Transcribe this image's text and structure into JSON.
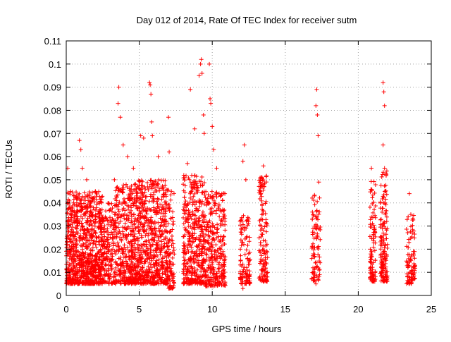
{
  "chart_data": {
    "type": "scatter",
    "title": "Day 012 of 2014, Rate Of TEC Index for receiver sutm",
    "xlabel": "GPS time / hours",
    "ylabel": "ROTI / TECUs",
    "xlim": [
      0,
      25
    ],
    "ylim": [
      0,
      0.11
    ],
    "xticks": [
      0,
      5,
      10,
      15,
      20,
      25
    ],
    "xtick_labels": [
      "0",
      "5",
      "10",
      "15",
      "20",
      "25"
    ],
    "yticks": [
      0,
      0.01,
      0.02,
      0.03,
      0.04,
      0.05,
      0.06,
      0.07,
      0.08,
      0.09,
      0.1,
      0.11
    ],
    "ytick_labels": [
      "0",
      "0.01",
      "0.02",
      "0.03",
      "0.04",
      "0.05",
      "0.06",
      "0.07",
      "0.08",
      "0.09",
      "0.1",
      "0.11"
    ],
    "grid": true,
    "marker": "+",
    "color": "#ff0000",
    "series": [
      {
        "name": "ROTI",
        "points": [
          [
            0.1,
            0.055
          ],
          [
            0.3,
            0.045
          ],
          [
            0.5,
            0.04
          ],
          [
            0.9,
            0.067
          ],
          [
            1.0,
            0.063
          ],
          [
            1.1,
            0.055
          ],
          [
            1.4,
            0.05
          ],
          [
            2.0,
            0.045
          ],
          [
            2.4,
            0.04
          ],
          [
            3.3,
            0.05
          ],
          [
            3.6,
            0.09
          ],
          [
            3.55,
            0.083
          ],
          [
            3.7,
            0.077
          ],
          [
            3.9,
            0.065
          ],
          [
            4.2,
            0.06
          ],
          [
            4.6,
            0.055
          ],
          [
            5.1,
            0.069
          ],
          [
            5.3,
            0.068
          ],
          [
            5.7,
            0.092
          ],
          [
            5.75,
            0.091
          ],
          [
            5.8,
            0.087
          ],
          [
            5.85,
            0.075
          ],
          [
            5.9,
            0.069
          ],
          [
            6.3,
            0.06
          ],
          [
            7.0,
            0.077
          ],
          [
            7.05,
            0.062
          ],
          [
            7.2,
            0.045
          ],
          [
            8.3,
            0.057
          ],
          [
            8.5,
            0.089
          ],
          [
            8.8,
            0.072
          ],
          [
            9.1,
            0.095
          ],
          [
            9.2,
            0.1
          ],
          [
            9.25,
            0.102
          ],
          [
            9.3,
            0.096
          ],
          [
            9.4,
            0.078
          ],
          [
            9.45,
            0.07
          ],
          [
            9.8,
            0.1
          ],
          [
            9.85,
            0.085
          ],
          [
            9.9,
            0.083
          ],
          [
            10.0,
            0.073
          ],
          [
            10.1,
            0.063
          ],
          [
            10.3,
            0.055
          ],
          [
            12.2,
            0.065
          ],
          [
            12.1,
            0.058
          ],
          [
            12.3,
            0.05
          ],
          [
            12.0,
            0.033
          ],
          [
            12.1,
            0.003
          ],
          [
            13.3,
            0.045
          ],
          [
            13.5,
            0.056
          ],
          [
            17.0,
            0.043
          ],
          [
            17.1,
            0.082
          ],
          [
            17.15,
            0.089
          ],
          [
            17.2,
            0.078
          ],
          [
            17.25,
            0.069
          ],
          [
            17.3,
            0.049
          ],
          [
            17.1,
            0.005
          ],
          [
            20.9,
            0.055
          ],
          [
            21.7,
            0.092
          ],
          [
            21.75,
            0.088
          ],
          [
            21.8,
            0.082
          ],
          [
            21.7,
            0.065
          ],
          [
            21.8,
            0.055
          ],
          [
            23.5,
            0.044
          ],
          [
            23.6,
            0.035
          ],
          [
            23.7,
            0.027
          ],
          [
            23.5,
            0.005
          ]
        ]
      }
    ],
    "dense_clusters": [
      {
        "x_range": [
          0.0,
          2.5
        ],
        "y_range": [
          0.005,
          0.045
        ],
        "count": 900
      },
      {
        "x_range": [
          2.5,
          3.3
        ],
        "y_range": [
          0.005,
          0.04
        ],
        "count": 160
      },
      {
        "x_range": [
          3.3,
          4.5
        ],
        "y_range": [
          0.005,
          0.048
        ],
        "count": 300
      },
      {
        "x_range": [
          4.5,
          7.0
        ],
        "y_range": [
          0.005,
          0.05
        ],
        "count": 750
      },
      {
        "x_range": [
          7.0,
          7.4
        ],
        "y_range": [
          0.003,
          0.045
        ],
        "count": 80
      },
      {
        "x_range": [
          8.0,
          9.5
        ],
        "y_range": [
          0.005,
          0.052
        ],
        "count": 420
      },
      {
        "x_range": [
          9.5,
          10.9
        ],
        "y_range": [
          0.004,
          0.045
        ],
        "count": 320
      },
      {
        "x_range": [
          11.9,
          12.6
        ],
        "y_range": [
          0.005,
          0.035
        ],
        "count": 110
      },
      {
        "x_range": [
          13.2,
          13.8
        ],
        "y_range": [
          0.006,
          0.052
        ],
        "count": 140
      },
      {
        "x_range": [
          16.8,
          17.4
        ],
        "y_range": [
          0.006,
          0.044
        ],
        "count": 90
      },
      {
        "x_range": [
          20.8,
          21.2
        ],
        "y_range": [
          0.006,
          0.05
        ],
        "count": 100
      },
      {
        "x_range": [
          21.5,
          22.0
        ],
        "y_range": [
          0.006,
          0.055
        ],
        "count": 160
      },
      {
        "x_range": [
          23.3,
          23.9
        ],
        "y_range": [
          0.005,
          0.035
        ],
        "count": 90
      }
    ]
  }
}
